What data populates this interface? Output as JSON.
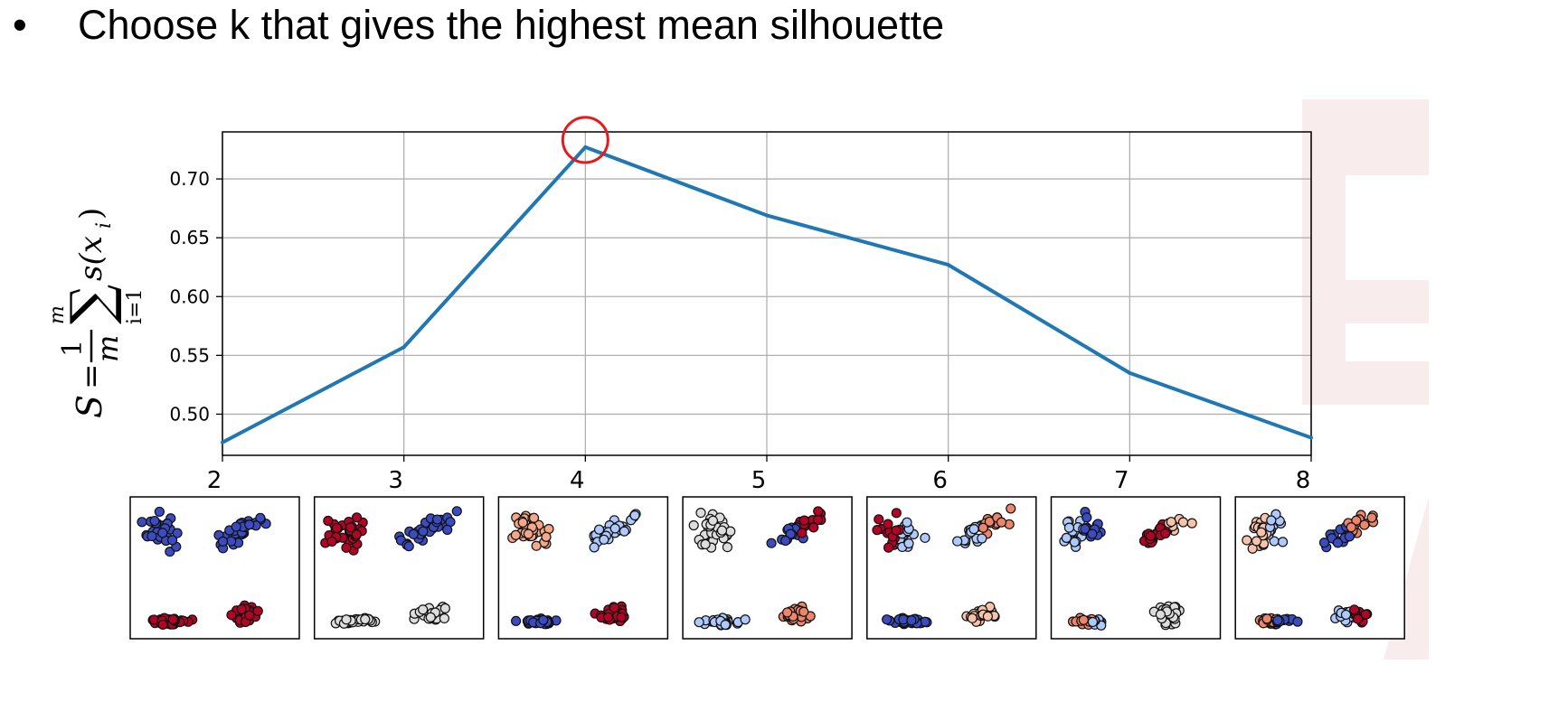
{
  "slide": {
    "bullet": "•",
    "text": "Choose k that gives the highest mean silhouette"
  },
  "colors": {
    "line": "#1f77b4",
    "highlight_circle": "#e8191b",
    "grid": "#b0b0b0",
    "watermark": "#f8ecec"
  },
  "chart_data": {
    "type": "line",
    "title": "",
    "xlabel": "",
    "ylabel": "S = (1/m) Σ_{i=1}^{m} s(x_i)",
    "ylabel_parts": {
      "S": "S",
      "eq": "=",
      "num": "1",
      "den": "m",
      "top": "m",
      "bottom": "i=1",
      "term": "s(x",
      "sub": "i",
      "close": ")"
    },
    "x": [
      2,
      3,
      4,
      5,
      6,
      7,
      8
    ],
    "values": [
      0.476,
      0.557,
      0.727,
      0.669,
      0.627,
      0.535,
      0.48
    ],
    "xlim": [
      2,
      8
    ],
    "ylim": [
      0.465,
      0.74
    ],
    "x_ticks": [
      "2",
      "3",
      "4",
      "5",
      "6",
      "7",
      "8"
    ],
    "y_ticks": [
      "0.50",
      "0.55",
      "0.60",
      "0.65",
      "0.70"
    ],
    "y_tick_values": [
      0.5,
      0.55,
      0.6,
      0.65,
      0.7
    ],
    "grid": true,
    "highlight_k": 4
  },
  "thumbnails": [
    {
      "k": 2,
      "groups": [
        "blue",
        "blue",
        "red",
        "red"
      ]
    },
    {
      "k": 3,
      "groups": [
        "red",
        "blue",
        "grey",
        "grey"
      ]
    },
    {
      "k": 4,
      "groups": [
        "salmon",
        "lightblue",
        "blue",
        "red"
      ]
    },
    {
      "k": 5,
      "groups": [
        "grey",
        "blue/red",
        "lightblue",
        "orange"
      ]
    },
    {
      "k": 6,
      "groups": [
        "red/lightblue",
        "lightblue/orange",
        "blue",
        "peach"
      ]
    },
    {
      "k": 7,
      "groups": [
        "lightblue/blue",
        "red/peach",
        "orange/lightblue",
        "grey"
      ]
    },
    {
      "k": 8,
      "groups": [
        "peach/lightblue",
        "blue/orange",
        "orange/blue",
        "lightblue/red"
      ]
    }
  ],
  "cluster_colors": {
    "blue": "#3b4cc0",
    "red": "#b40426",
    "grey": "#dddddd",
    "salmon": "#f4a789",
    "lightblue": "#aec9fc",
    "orange": "#ee8468",
    "peach": "#f7c4ab",
    "midblue": "#7b9ff9"
  }
}
